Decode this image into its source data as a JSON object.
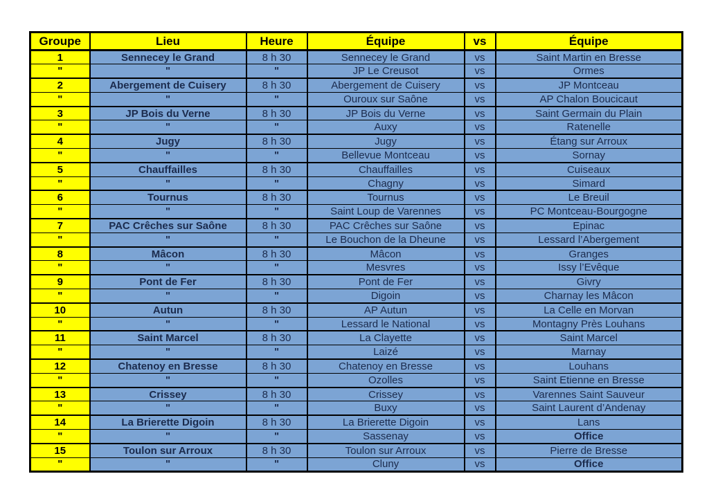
{
  "colors": {
    "header_bg": "#FFFF00",
    "group_column_bg": "#FFFF00",
    "row_bg": "#7CA4D4",
    "border": "#000000",
    "text_on_blue": "#1B2B4D",
    "text_on_yellow": "#000000"
  },
  "table": {
    "columns": [
      "Groupe",
      "Lieu",
      "Heure",
      "Équipe",
      "vs",
      "Équipe"
    ],
    "vs_label": "vs",
    "rows": [
      {
        "groupe": "1",
        "lieu": "Sennecey le Grand",
        "heure": "8 h 30",
        "equipe1": "Sennecey le Grand",
        "vs": "vs",
        "equipe2": "Saint Martin en Bresse",
        "group_start": true,
        "equipe2_bold": false
      },
      {
        "groupe": "\"",
        "lieu": "\"",
        "heure": "\"",
        "equipe1": "JP Le Creusot",
        "vs": "vs",
        "equipe2": "Ormes",
        "group_start": false,
        "equipe2_bold": false
      },
      {
        "groupe": "2",
        "lieu": "Abergement de Cuisery",
        "heure": "8 h 30",
        "equipe1": "Abergement de Cuisery",
        "vs": "vs",
        "equipe2": "JP Montceau",
        "group_start": true,
        "equipe2_bold": false
      },
      {
        "groupe": "\"",
        "lieu": "\"",
        "heure": "\"",
        "equipe1": "Ouroux sur Saône",
        "vs": "vs",
        "equipe2": "AP Chalon Boucicaut",
        "group_start": false,
        "equipe2_bold": false
      },
      {
        "groupe": "3",
        "lieu": "JP Bois du Verne",
        "heure": "8 h 30",
        "equipe1": "JP Bois du Verne",
        "vs": "vs",
        "equipe2": "Saint Germain du Plain",
        "group_start": true,
        "equipe2_bold": false
      },
      {
        "groupe": "\"",
        "lieu": "\"",
        "heure": "\"",
        "equipe1": "Auxy",
        "vs": "vs",
        "equipe2": "Ratenelle",
        "group_start": false,
        "equipe2_bold": false
      },
      {
        "groupe": "4",
        "lieu": "Jugy",
        "heure": "8 h 30",
        "equipe1": "Jugy",
        "vs": "vs",
        "equipe2": "Étang sur Arroux",
        "group_start": true,
        "equipe2_bold": false
      },
      {
        "groupe": "\"",
        "lieu": "\"",
        "heure": "\"",
        "equipe1": "Bellevue Montceau",
        "vs": "vs",
        "equipe2": "Sornay",
        "group_start": false,
        "equipe2_bold": false
      },
      {
        "groupe": "5",
        "lieu": "Chauffailles",
        "heure": "8 h 30",
        "equipe1": "Chauffailles",
        "vs": "vs",
        "equipe2": "Cuiseaux",
        "group_start": true,
        "equipe2_bold": false
      },
      {
        "groupe": "\"",
        "lieu": "\"",
        "heure": "\"",
        "equipe1": "Chagny",
        "vs": "vs",
        "equipe2": "Simard",
        "group_start": false,
        "equipe2_bold": false
      },
      {
        "groupe": "6",
        "lieu": "Tournus",
        "heure": "8 h 30",
        "equipe1": "Tournus",
        "vs": "vs",
        "equipe2": "Le Breuil",
        "group_start": true,
        "equipe2_bold": false
      },
      {
        "groupe": "\"",
        "lieu": "\"",
        "heure": "\"",
        "equipe1": "Saint Loup de Varennes",
        "vs": "vs",
        "equipe2": "PC Montceau-Bourgogne",
        "group_start": false,
        "equipe2_bold": false
      },
      {
        "groupe": "7",
        "lieu": "PAC Crêches sur Saône",
        "heure": "8 h 30",
        "equipe1": "PAC Crêches sur Saône",
        "vs": "vs",
        "equipe2": "Epinac",
        "group_start": true,
        "equipe2_bold": false
      },
      {
        "groupe": "\"",
        "lieu": "\"",
        "heure": "\"",
        "equipe1": "Le Bouchon de la Dheune",
        "vs": "vs",
        "equipe2": "Lessard l’Abergement",
        "group_start": false,
        "equipe2_bold": false
      },
      {
        "groupe": "8",
        "lieu": "Mâcon",
        "heure": "8 h 30",
        "equipe1": "Mâcon",
        "vs": "vs",
        "equipe2": "Granges",
        "group_start": true,
        "equipe2_bold": false
      },
      {
        "groupe": "\"",
        "lieu": "\"",
        "heure": "\"",
        "equipe1": "Mesvres",
        "vs": "vs",
        "equipe2": "Issy l’Evêque",
        "group_start": false,
        "equipe2_bold": false
      },
      {
        "groupe": "9",
        "lieu": "Pont de Fer",
        "heure": "8 h 30",
        "equipe1": "Pont de Fer",
        "vs": "vs",
        "equipe2": "Givry",
        "group_start": true,
        "equipe2_bold": false
      },
      {
        "groupe": "\"",
        "lieu": "\"",
        "heure": "\"",
        "equipe1": "Digoin",
        "vs": "vs",
        "equipe2": "Charnay les Mâcon",
        "group_start": false,
        "equipe2_bold": false
      },
      {
        "groupe": "10",
        "lieu": "Autun",
        "heure": "8 h 30",
        "equipe1": "AP Autun",
        "vs": "vs",
        "equipe2": "La Celle en Morvan",
        "group_start": true,
        "equipe2_bold": false
      },
      {
        "groupe": "\"",
        "lieu": "\"",
        "heure": "\"",
        "equipe1": "Lessard le National",
        "vs": "vs",
        "equipe2": "Montagny Près Louhans",
        "group_start": false,
        "equipe2_bold": false
      },
      {
        "groupe": "11",
        "lieu": "Saint Marcel",
        "heure": "8 h 30",
        "equipe1": "La Clayette",
        "vs": "vs",
        "equipe2": "Saint Marcel",
        "group_start": true,
        "equipe2_bold": false
      },
      {
        "groupe": "\"",
        "lieu": "\"",
        "heure": "\"",
        "equipe1": "Laizé",
        "vs": "vs",
        "equipe2": "Marnay",
        "group_start": false,
        "equipe2_bold": false
      },
      {
        "groupe": "12",
        "lieu": "Chatenoy en Bresse",
        "heure": "8 h 30",
        "equipe1": "Chatenoy en Bresse",
        "vs": "vs",
        "equipe2": "Louhans",
        "group_start": true,
        "equipe2_bold": false
      },
      {
        "groupe": "\"",
        "lieu": "\"",
        "heure": "\"",
        "equipe1": "Ozolles",
        "vs": "vs",
        "equipe2": "Saint Etienne en Bresse",
        "group_start": false,
        "equipe2_bold": false
      },
      {
        "groupe": "13",
        "lieu": "Crissey",
        "heure": "8 h 30",
        "equipe1": "Crissey",
        "vs": "vs",
        "equipe2": "Varennes Saint Sauveur",
        "group_start": true,
        "equipe2_bold": false
      },
      {
        "groupe": "\"",
        "lieu": "\"",
        "heure": "\"",
        "equipe1": "Buxy",
        "vs": "vs",
        "equipe2": "Saint Laurent d’Andenay",
        "group_start": false,
        "equipe2_bold": false
      },
      {
        "groupe": "14",
        "lieu": "La Brierette Digoin",
        "heure": "8 h 30",
        "equipe1": "La Brierette Digoin",
        "vs": "vs",
        "equipe2": "Lans",
        "group_start": true,
        "equipe2_bold": false
      },
      {
        "groupe": "\"",
        "lieu": "\"",
        "heure": "\"",
        "equipe1": "Sassenay",
        "vs": "vs",
        "equipe2": "Office",
        "group_start": false,
        "equipe2_bold": true
      },
      {
        "groupe": "15",
        "lieu": "Toulon sur Arroux",
        "heure": "8 h 30",
        "equipe1": "Toulon sur Arroux",
        "vs": "vs",
        "equipe2": "Pierre de Bresse",
        "group_start": true,
        "equipe2_bold": false
      },
      {
        "groupe": "\"",
        "lieu": "\"",
        "heure": "\"",
        "equipe1": "Cluny",
        "vs": "vs",
        "equipe2": "Office",
        "group_start": false,
        "equipe2_bold": true
      }
    ]
  }
}
